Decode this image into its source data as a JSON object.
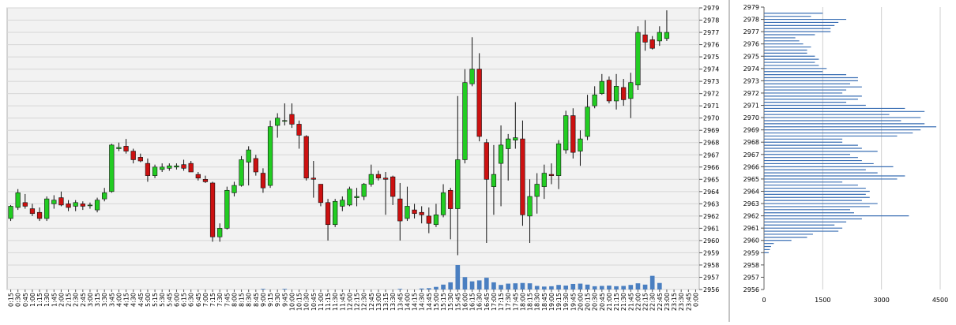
{
  "colors": {
    "background": "#ffffff",
    "plot_bg": "#f2f2f2",
    "grid": "#d6d6d6",
    "up": "#22cc22",
    "down": "#cc1111",
    "wick": "#111111",
    "volume": "#4a7fc1",
    "profile": "#3a6fb4",
    "divider": "#888888"
  },
  "chart_data": [
    {
      "type": "candlestick",
      "title": "",
      "xlabel": "",
      "ylabel": "",
      "ylim": [
        2956,
        2979
      ],
      "y_ticks": [
        "2956",
        "2957",
        "2958",
        "2959",
        "2960",
        "2961",
        "2962",
        "2963",
        "2964",
        "2965",
        "2966",
        "2967",
        "2968",
        "2969",
        "2970",
        "2971",
        "2972",
        "2973",
        "2974",
        "2975",
        "2976",
        "2977",
        "2978",
        "2979"
      ],
      "grid": true,
      "categories": [
        "0:15",
        "0:30",
        "0:45",
        "1:00",
        "1:15",
        "1:30",
        "1:45",
        "2:00",
        "2:15",
        "2:30",
        "2:45",
        "3:00",
        "3:15",
        "3:30",
        "3:45",
        "4:00",
        "4:15",
        "4:30",
        "4:45",
        "5:00",
        "5:15",
        "5:30",
        "5:45",
        "6:00",
        "6:15",
        "6:30",
        "6:45",
        "7:00",
        "7:15",
        "7:30",
        "7:45",
        "8:00",
        "8:15",
        "8:30",
        "8:45",
        "9:00",
        "9:15",
        "9:30",
        "9:45",
        "10:00",
        "10:15",
        "10:30",
        "10:45",
        "11:00",
        "11:15",
        "11:30",
        "11:45",
        "12:00",
        "12:15",
        "12:30",
        "12:45",
        "13:00",
        "13:15",
        "13:30",
        "13:45",
        "14:00",
        "14:15",
        "14:30",
        "14:45",
        "15:00",
        "15:15",
        "15:30",
        "15:45",
        "16:00",
        "16:15",
        "16:30",
        "16:45",
        "17:00",
        "17:15",
        "17:30",
        "17:45",
        "18:00",
        "18:15",
        "18:30",
        "18:45",
        "19:00",
        "19:15",
        "19:30",
        "19:45",
        "20:00",
        "20:15",
        "20:30",
        "20:45",
        "21:00",
        "21:15",
        "21:30",
        "21:45",
        "22:00",
        "22:15",
        "22:30",
        "22:45",
        "23:00",
        "23:15",
        "23:30",
        "23:45",
        "0:00"
      ],
      "candles": [
        {
          "o": 2961.8,
          "h": 2962.9,
          "l": 2961.6,
          "c": 2962.8
        },
        {
          "o": 2962.7,
          "h": 2964.2,
          "l": 2962.5,
          "c": 2963.9
        },
        {
          "o": 2963.1,
          "h": 2963.8,
          "l": 2962.6,
          "c": 2962.8
        },
        {
          "o": 2962.6,
          "h": 2963.0,
          "l": 2962.0,
          "c": 2962.2
        },
        {
          "o": 2962.3,
          "h": 2962.7,
          "l": 2961.6,
          "c": 2961.8
        },
        {
          "o": 2961.8,
          "h": 2963.6,
          "l": 2961.6,
          "c": 2963.4
        },
        {
          "o": 2963.0,
          "h": 2963.7,
          "l": 2962.6,
          "c": 2963.3
        },
        {
          "o": 2963.5,
          "h": 2964.0,
          "l": 2962.8,
          "c": 2962.9
        },
        {
          "o": 2963.0,
          "h": 2963.3,
          "l": 2962.4,
          "c": 2962.7
        },
        {
          "o": 2962.8,
          "h": 2963.3,
          "l": 2962.4,
          "c": 2963.1
        },
        {
          "o": 2963.0,
          "h": 2963.2,
          "l": 2962.5,
          "c": 2962.8
        },
        {
          "o": 2962.9,
          "h": 2963.1,
          "l": 2962.6,
          "c": 2962.9
        },
        {
          "o": 2962.5,
          "h": 2963.5,
          "l": 2962.3,
          "c": 2963.3
        },
        {
          "o": 2963.4,
          "h": 2964.3,
          "l": 2963.2,
          "c": 2963.9
        },
        {
          "o": 2964.0,
          "h": 2967.9,
          "l": 2963.9,
          "c": 2967.8
        },
        {
          "o": 2967.5,
          "h": 2968.0,
          "l": 2967.3,
          "c": 2967.6
        },
        {
          "o": 2967.7,
          "h": 2968.3,
          "l": 2967.1,
          "c": 2967.3
        },
        {
          "o": 2967.3,
          "h": 2967.5,
          "l": 2966.3,
          "c": 2966.6
        },
        {
          "o": 2966.8,
          "h": 2967.1,
          "l": 2966.4,
          "c": 2966.5
        },
        {
          "o": 2966.3,
          "h": 2966.7,
          "l": 2964.8,
          "c": 2965.3
        },
        {
          "o": 2965.3,
          "h": 2966.2,
          "l": 2965.1,
          "c": 2966.0
        },
        {
          "o": 2965.8,
          "h": 2966.3,
          "l": 2965.6,
          "c": 2966.0
        },
        {
          "o": 2965.9,
          "h": 2966.3,
          "l": 2965.7,
          "c": 2966.1
        },
        {
          "o": 2966.0,
          "h": 2966.3,
          "l": 2965.8,
          "c": 2966.1
        },
        {
          "o": 2966.2,
          "h": 2966.6,
          "l": 2965.7,
          "c": 2965.9
        },
        {
          "o": 2966.3,
          "h": 2966.5,
          "l": 2965.6,
          "c": 2965.6
        },
        {
          "o": 2965.4,
          "h": 2965.6,
          "l": 2964.9,
          "c": 2965.1
        },
        {
          "o": 2965.0,
          "h": 2965.3,
          "l": 2964.7,
          "c": 2964.8
        },
        {
          "o": 2964.7,
          "h": 2964.8,
          "l": 2959.9,
          "c": 2960.3
        },
        {
          "o": 2960.3,
          "h": 2961.4,
          "l": 2959.9,
          "c": 2961.0
        },
        {
          "o": 2961.0,
          "h": 2964.4,
          "l": 2960.9,
          "c": 2964.1
        },
        {
          "o": 2963.9,
          "h": 2964.8,
          "l": 2963.6,
          "c": 2964.5
        },
        {
          "o": 2964.5,
          "h": 2966.9,
          "l": 2964.4,
          "c": 2966.6
        },
        {
          "o": 2966.4,
          "h": 2967.7,
          "l": 2964.5,
          "c": 2967.4
        },
        {
          "o": 2966.7,
          "h": 2967.0,
          "l": 2965.3,
          "c": 2965.6
        },
        {
          "o": 2965.5,
          "h": 2965.9,
          "l": 2963.9,
          "c": 2964.3
        },
        {
          "o": 2964.5,
          "h": 2969.8,
          "l": 2964.3,
          "c": 2969.3
        },
        {
          "o": 2969.4,
          "h": 2970.4,
          "l": 2968.4,
          "c": 2970.0
        },
        {
          "o": 2969.8,
          "h": 2971.2,
          "l": 2969.4,
          "c": 2969.8
        },
        {
          "o": 2970.3,
          "h": 2971.2,
          "l": 2969.2,
          "c": 2969.5
        },
        {
          "o": 2969.5,
          "h": 2969.8,
          "l": 2967.5,
          "c": 2968.6
        },
        {
          "o": 2968.5,
          "h": 2968.6,
          "l": 2964.9,
          "c": 2965.1
        },
        {
          "o": 2965.1,
          "h": 2966.5,
          "l": 2963.5,
          "c": 2965.0
        },
        {
          "o": 2964.6,
          "h": 2964.6,
          "l": 2962.8,
          "c": 2963.1
        },
        {
          "o": 2963.1,
          "h": 2963.4,
          "l": 2960.0,
          "c": 2961.3
        },
        {
          "o": 2961.3,
          "h": 2963.4,
          "l": 2961.1,
          "c": 2963.2
        },
        {
          "o": 2962.8,
          "h": 2963.6,
          "l": 2962.4,
          "c": 2963.3
        },
        {
          "o": 2962.9,
          "h": 2964.4,
          "l": 2962.8,
          "c": 2964.2
        },
        {
          "o": 2963.5,
          "h": 2964.3,
          "l": 2962.8,
          "c": 2963.6
        },
        {
          "o": 2963.6,
          "h": 2964.7,
          "l": 2963.3,
          "c": 2964.6
        },
        {
          "o": 2964.6,
          "h": 2966.2,
          "l": 2964.4,
          "c": 2965.4
        },
        {
          "o": 2965.4,
          "h": 2965.7,
          "l": 2964.9,
          "c": 2965.1
        },
        {
          "o": 2965.1,
          "h": 2965.6,
          "l": 2962.1,
          "c": 2965.0
        },
        {
          "o": 2965.2,
          "h": 2965.3,
          "l": 2962.9,
          "c": 2963.6
        },
        {
          "o": 2963.4,
          "h": 2964.7,
          "l": 2960.0,
          "c": 2961.6
        },
        {
          "o": 2961.8,
          "h": 2964.4,
          "l": 2961.6,
          "c": 2962.8
        },
        {
          "o": 2962.5,
          "h": 2963.0,
          "l": 2961.8,
          "c": 2962.2
        },
        {
          "o": 2962.3,
          "h": 2962.8,
          "l": 2961.4,
          "c": 2962.1
        },
        {
          "o": 2962.0,
          "h": 2962.7,
          "l": 2960.6,
          "c": 2961.4
        },
        {
          "o": 2961.3,
          "h": 2963.0,
          "l": 2961.1,
          "c": 2962.1
        },
        {
          "o": 2962.1,
          "h": 2964.6,
          "l": 2961.9,
          "c": 2963.9
        },
        {
          "o": 2964.1,
          "h": 2964.3,
          "l": 2960.1,
          "c": 2962.6
        },
        {
          "o": 2962.6,
          "h": 2971.8,
          "l": 2958.8,
          "c": 2966.6
        },
        {
          "o": 2966.6,
          "h": 2974.0,
          "l": 2966.3,
          "c": 2972.9
        },
        {
          "o": 2972.8,
          "h": 2976.6,
          "l": 2972.6,
          "c": 2974.0
        },
        {
          "o": 2974.0,
          "h": 2975.3,
          "l": 2968.1,
          "c": 2968.5
        },
        {
          "o": 2968.0,
          "h": 2968.3,
          "l": 2959.8,
          "c": 2965.0
        },
        {
          "o": 2964.4,
          "h": 2967.8,
          "l": 2962.1,
          "c": 2965.4
        },
        {
          "o": 2966.3,
          "h": 2969.4,
          "l": 2962.8,
          "c": 2967.8
        },
        {
          "o": 2967.5,
          "h": 2968.7,
          "l": 2964.9,
          "c": 2968.3
        },
        {
          "o": 2968.2,
          "h": 2971.3,
          "l": 2967.5,
          "c": 2968.4
        },
        {
          "o": 2968.3,
          "h": 2969.8,
          "l": 2961.2,
          "c": 2962.1
        },
        {
          "o": 2962.0,
          "h": 2965.0,
          "l": 2959.8,
          "c": 2963.6
        },
        {
          "o": 2963.6,
          "h": 2965.5,
          "l": 2962.2,
          "c": 2964.6
        },
        {
          "o": 2964.4,
          "h": 2966.2,
          "l": 2963.4,
          "c": 2965.5
        },
        {
          "o": 2965.4,
          "h": 2966.3,
          "l": 2964.6,
          "c": 2965.3
        },
        {
          "o": 2965.3,
          "h": 2968.2,
          "l": 2964.2,
          "c": 2967.9
        },
        {
          "o": 2967.4,
          "h": 2970.6,
          "l": 2967.1,
          "c": 2970.2
        },
        {
          "o": 2970.2,
          "h": 2970.8,
          "l": 2966.7,
          "c": 2967.2
        },
        {
          "o": 2967.3,
          "h": 2969.0,
          "l": 2966.1,
          "c": 2968.3
        },
        {
          "o": 2968.5,
          "h": 2971.9,
          "l": 2968.2,
          "c": 2970.9
        },
        {
          "o": 2971.0,
          "h": 2972.6,
          "l": 2970.8,
          "c": 2971.9
        },
        {
          "o": 2972.0,
          "h": 2973.6,
          "l": 2971.9,
          "c": 2973.0
        },
        {
          "o": 2973.1,
          "h": 2973.4,
          "l": 2971.2,
          "c": 2971.4
        },
        {
          "o": 2971.4,
          "h": 2973.6,
          "l": 2970.7,
          "c": 2972.6
        },
        {
          "o": 2972.5,
          "h": 2973.2,
          "l": 2971.0,
          "c": 2971.5
        },
        {
          "o": 2971.6,
          "h": 2973.7,
          "l": 2970.0,
          "c": 2972.9
        },
        {
          "o": 2972.7,
          "h": 2977.5,
          "l": 2972.3,
          "c": 2977.0
        },
        {
          "o": 2976.8,
          "h": 2978.0,
          "l": 2975.5,
          "c": 2976.2
        },
        {
          "o": 2976.4,
          "h": 2976.7,
          "l": 2975.6,
          "c": 2975.7
        },
        {
          "o": 2976.3,
          "h": 2977.5,
          "l": 2975.9,
          "c": 2977.0
        },
        {
          "o": 2976.5,
          "h": 2978.8,
          "l": 2976.3,
          "c": 2977.0
        }
      ],
      "volume": [
        0,
        0,
        0,
        0,
        0,
        0,
        0,
        0,
        0,
        0,
        0,
        0,
        0,
        0,
        0,
        0,
        0,
        0,
        0,
        0,
        0,
        0,
        0,
        0,
        0,
        0,
        0,
        0,
        0,
        0,
        0,
        0,
        0,
        0,
        0,
        0.2,
        0,
        0,
        0.2,
        0,
        0,
        0,
        0,
        0,
        0,
        0,
        0,
        0,
        0,
        0,
        0,
        0,
        0,
        0,
        0.2,
        0,
        0,
        0.3,
        0.4,
        0.8,
        1.5,
        2.2,
        7.5,
        3.8,
        2.5,
        2.8,
        3.6,
        2.2,
        1.4,
        1.8,
        1.9,
        2.0,
        1.9,
        1.1,
        0.9,
        1.0,
        1.4,
        1.2,
        1.7,
        1.8,
        1.5,
        1.0,
        1.1,
        1.2,
        1.0,
        1.1,
        1.4,
        1.9,
        1.5,
        4.2,
        2.0,
        0,
        0,
        0,
        0,
        0
      ]
    },
    {
      "type": "bar",
      "orientation": "horizontal",
      "title": "",
      "xlabel": "",
      "ylabel": "",
      "xlim": [
        0,
        4500
      ],
      "x_ticks": [
        "0",
        "1500",
        "3000",
        "4500"
      ],
      "ylim": [
        2956,
        2979
      ],
      "y_ticks": [
        "2956",
        "2957",
        "2958",
        "2959",
        "2960",
        "2961",
        "2962",
        "2963",
        "2964",
        "2965",
        "2966",
        "2967",
        "2968",
        "2969",
        "2970",
        "2971",
        "2972",
        "2973",
        "2974",
        "2975",
        "2976",
        "2977",
        "2978",
        "2979"
      ],
      "grid": true,
      "levels": [
        2959.0,
        2959.25,
        2959.5,
        2959.75,
        2960.0,
        2960.25,
        2960.5,
        2960.75,
        2961.0,
        2961.25,
        2961.5,
        2961.75,
        2962.0,
        2962.25,
        2962.5,
        2962.75,
        2963.0,
        2963.25,
        2963.5,
        2963.75,
        2964.0,
        2964.25,
        2964.5,
        2964.75,
        2965.0,
        2965.25,
        2965.5,
        2965.75,
        2966.0,
        2966.25,
        2966.5,
        2966.75,
        2967.0,
        2967.25,
        2967.5,
        2967.75,
        2968.0,
        2968.25,
        2968.5,
        2968.75,
        2969.0,
        2969.25,
        2969.5,
        2969.75,
        2970.0,
        2970.25,
        2970.5,
        2970.75,
        2971.0,
        2971.25,
        2971.5,
        2971.75,
        2972.0,
        2972.25,
        2972.5,
        2972.75,
        2973.0,
        2973.25,
        2973.5,
        2973.75,
        2974.0,
        2974.25,
        2974.5,
        2974.75,
        2975.0,
        2975.25,
        2975.5,
        2975.75,
        2976.0,
        2976.25,
        2976.5,
        2976.75,
        2977.0,
        2977.25,
        2977.5,
        2977.75,
        2978.0,
        2978.25,
        2978.5
      ],
      "values": [
        120,
        150,
        180,
        250,
        700,
        1100,
        1250,
        1900,
        2000,
        1800,
        2100,
        2500,
        3700,
        2300,
        2200,
        2700,
        2900,
        2500,
        2700,
        2600,
        2700,
        2600,
        2400,
        2000,
        3400,
        3600,
        2900,
        2600,
        3300,
        2800,
        2500,
        2400,
        2200,
        2900,
        2500,
        2400,
        2000,
        2000,
        3400,
        3800,
        4000,
        4400,
        4100,
        3500,
        4000,
        3200,
        4100,
        3600,
        2600,
        2100,
        2400,
        2500,
        2000,
        2100,
        2500,
        2200,
        2400,
        2400,
        2100,
        1500,
        1600,
        1400,
        1300,
        1400,
        1300,
        1100,
        1100,
        1200,
        1000,
        900,
        800,
        1300,
        1700,
        1700,
        1800,
        1900,
        2100,
        1200,
        1500
      ]
    }
  ]
}
